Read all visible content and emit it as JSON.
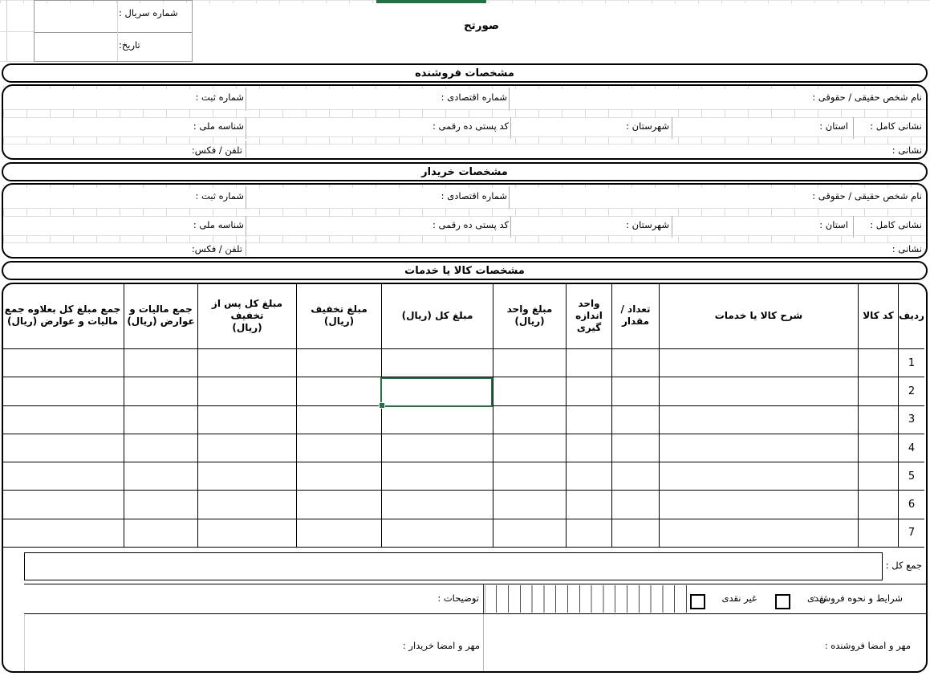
{
  "top": {
    "serial_label": "شماره سریال :",
    "date_label": "تاریخ:",
    "title": "صورتح"
  },
  "sections": {
    "seller_title": "مشخصات فروشنده",
    "buyer_title": "مشخصات خریدار",
    "items_title": "مشخصات کالا یا خدمات"
  },
  "party_fields": {
    "name": "نام شخص حقیقی / حقوقی :",
    "economic_code": "شماره اقتصادی :",
    "registration_no": "شماره ثبت :",
    "full_address": "نشانی کامل :",
    "province": "استان :",
    "county": "شهرستان :",
    "postal_code": "کد پستی ده رقمی :",
    "national_id": "شناسه ملی :",
    "address": "نشانی :",
    "phone_fax": "تلفن / فکس:"
  },
  "items_table": {
    "columns": [
      "ردیف",
      "کد کالا",
      "شرح کالا یا خدمات",
      "تعداد /\nمقدار",
      "واحد\nاندازه\nگیری",
      "مبلغ واحد (ریال)",
      "مبلغ کل (ریال)",
      "مبلغ تخفیف\n(ریال)",
      "مبلغ کل پس از تخفیف\n(ریال)",
      "جمع مالیات و\nعوارض (ریال)",
      "جمع مبلغ کل بعلاوه جمع\nمالیات و عوارض (ریال)"
    ],
    "row_numbers": [
      "1",
      "2",
      "3",
      "4",
      "5",
      "6",
      "7"
    ],
    "total_label": "جمع کل :"
  },
  "footer": {
    "terms_label": "شرایط و نحوه فروش :",
    "cash_label": "نقدی",
    "non_cash_label": "غیر نقدی",
    "notes_label": "توضیحات :",
    "seller_sign_label": "مهر و امضا فروشنده :",
    "buyer_sign_label": "مهر و امضا خریدار :"
  },
  "colors": {
    "selection_green": "#217346",
    "grid_black": "#000000",
    "gridline_gray": "#d9d9d9"
  }
}
